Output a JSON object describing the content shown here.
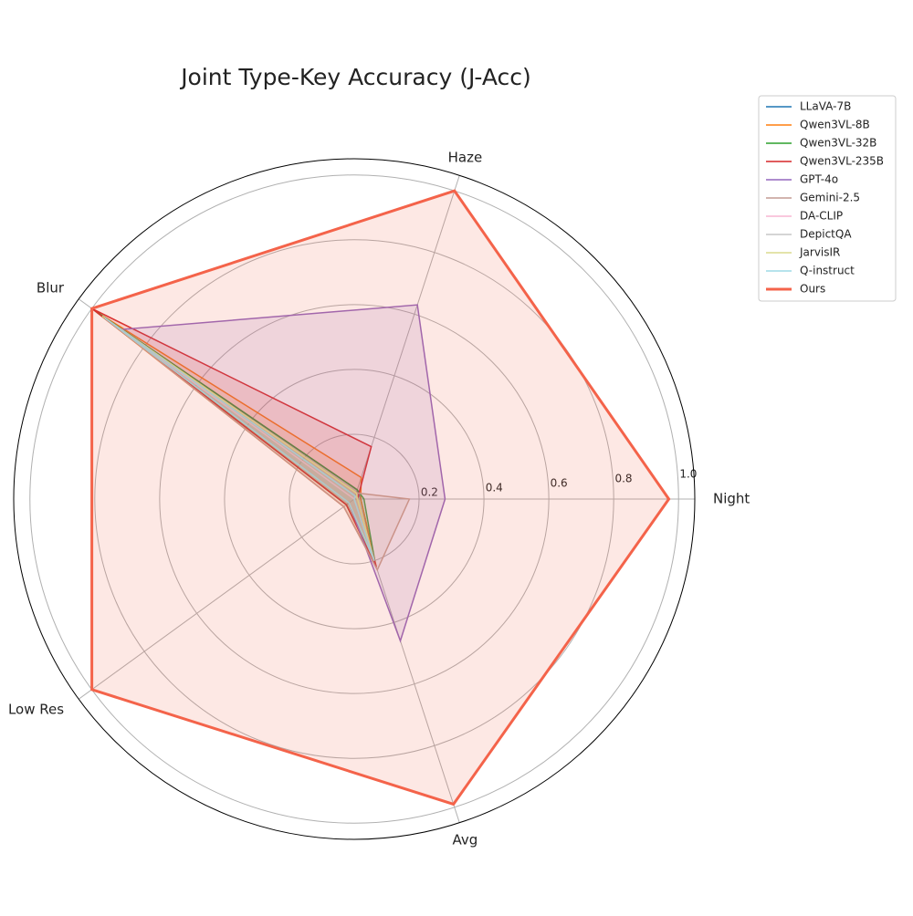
{
  "chart_data": {
    "type": "radar",
    "title": "Joint Type-Key Accuracy (J-Acc)",
    "categories": [
      "Night",
      "Haze",
      "Blur",
      "Low Res",
      "Avg"
    ],
    "ylim": [
      0,
      1.05
    ],
    "yticks": [
      0.2,
      0.4,
      0.6,
      0.8,
      {
        "value": 1.0,
        "label": "1.0"
      }
    ],
    "grid": true,
    "legend": "upper right outside",
    "series": [
      {
        "name": "LLaVA-7B",
        "color": "#1f77b4",
        "values": [
          0.02,
          0.03,
          0.97,
          0.03,
          0.21
        ]
      },
      {
        "name": "Qwen3VL-8B",
        "color": "#ff7f0e",
        "values": [
          0.02,
          0.07,
          0.98,
          0.04,
          0.22
        ]
      },
      {
        "name": "Qwen3VL-32B",
        "color": "#2ca02c",
        "values": [
          0.03,
          0.03,
          1.0,
          0.03,
          0.21
        ]
      },
      {
        "name": "Qwen3VL-235B",
        "color": "#d62728",
        "values": [
          0.01,
          0.17,
          1.0,
          0.03,
          0.22
        ]
      },
      {
        "name": "GPT-4o",
        "color": "#9467bd",
        "values": [
          0.28,
          0.63,
          0.89,
          0.02,
          0.46
        ]
      },
      {
        "name": "Gemini-2.5",
        "color": "#c49c94",
        "values": [
          0.17,
          0.02,
          0.96,
          0.04,
          0.23
        ]
      },
      {
        "name": "DA-CLIP",
        "color": "#f7b6d2",
        "values": [
          0.0,
          0.0,
          0.95,
          0.0,
          0.19
        ]
      },
      {
        "name": "DepictQA",
        "color": "#c7c7c7",
        "values": [
          0.01,
          0.01,
          0.95,
          0.02,
          0.2
        ]
      },
      {
        "name": "JarvisIR",
        "color": "#dbdb8d",
        "values": [
          0.01,
          0.02,
          0.96,
          0.02,
          0.2
        ]
      },
      {
        "name": "Q-instruct",
        "color": "#9edae5",
        "values": [
          0.0,
          0.01,
          0.95,
          0.02,
          0.2
        ]
      },
      {
        "name": "Ours",
        "color": "#f4634a",
        "values": [
          0.97,
          1.0,
          1.0,
          1.0,
          0.99
        ]
      }
    ]
  }
}
